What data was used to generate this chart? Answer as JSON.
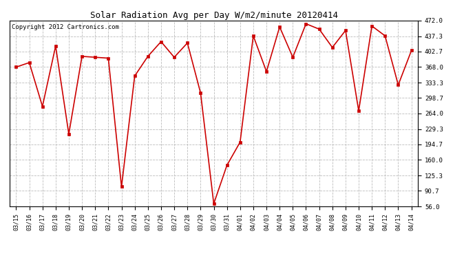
{
  "title": "Solar Radiation Avg per Day W/m2/minute 20120414",
  "copyright": "Copyright 2012 Cartronics.com",
  "labels": [
    "03/15",
    "03/16",
    "03/17",
    "03/18",
    "03/19",
    "03/20",
    "03/21",
    "03/22",
    "03/23",
    "03/24",
    "03/25",
    "03/26",
    "03/27",
    "03/28",
    "03/29",
    "03/30",
    "03/31",
    "04/01",
    "04/02",
    "04/03",
    "04/04",
    "04/05",
    "04/06",
    "04/07",
    "04/08",
    "04/09",
    "04/10",
    "04/11",
    "04/12",
    "04/13",
    "04/14"
  ],
  "values": [
    368,
    378,
    280,
    415,
    218,
    392,
    390,
    388,
    100,
    348,
    392,
    425,
    390,
    422,
    310,
    62,
    148,
    200,
    438,
    358,
    458,
    390,
    465,
    453,
    412,
    450,
    270,
    460,
    438,
    328,
    405
  ],
  "line_color": "#cc0000",
  "marker_color": "#cc0000",
  "background_color": "#ffffff",
  "grid_color": "#bbbbbb",
  "yticks": [
    56.0,
    90.7,
    125.3,
    160.0,
    194.7,
    229.3,
    264.0,
    298.7,
    333.3,
    368.0,
    402.7,
    437.3,
    472.0
  ],
  "ymin": 56.0,
  "ymax": 472.0,
  "title_fontsize": 9,
  "copyright_fontsize": 6.5,
  "tick_fontsize": 6,
  "ytick_fontsize": 6.5
}
